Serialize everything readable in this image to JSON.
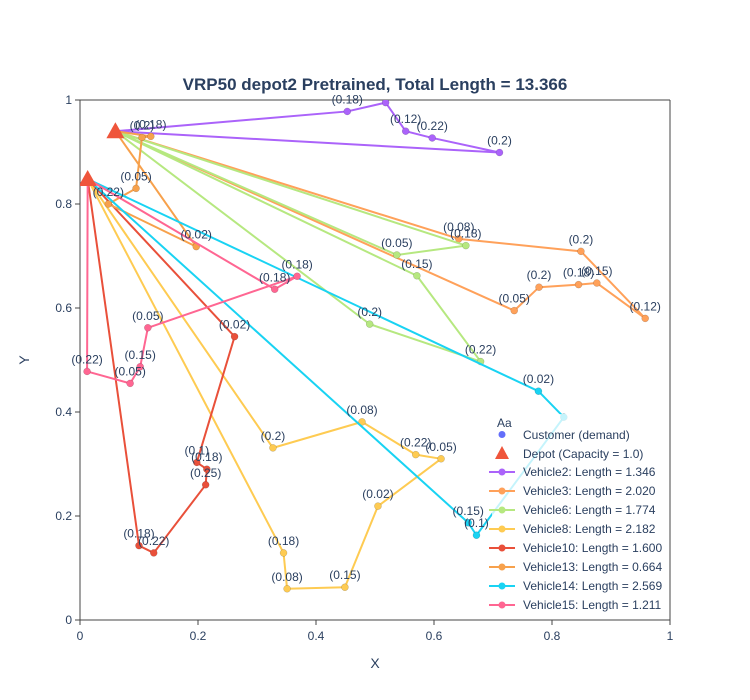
{
  "chart_data": {
    "type": "scatter",
    "title": "VRP50 depot2 Pretrained, Total Length = 13.366",
    "xlabel": "X",
    "ylabel": "Y",
    "xlim": [
      0,
      1
    ],
    "ylim": [
      0,
      1
    ],
    "xticks": [
      "0",
      "0.2",
      "0.4",
      "0.6",
      "0.8",
      "1"
    ],
    "yticks": [
      "0",
      "0.2",
      "0.4",
      "0.6",
      "0.8",
      "1"
    ],
    "grid": false,
    "legend_position": "bottom-right",
    "legend_title": "Aa",
    "legend_entries": {
      "customer": "Customer (demand)",
      "depot": "Depot (Capacity = 1.0)"
    },
    "depots": [
      {
        "x": 0.06,
        "y": 0.94,
        "color": "#ef553b"
      },
      {
        "x": 0.013,
        "y": 0.848,
        "color": "#ef553b"
      }
    ],
    "series": [
      {
        "name": "Vehicle2: Length = 1.346",
        "color": "#ab63fa",
        "points": [
          {
            "x": 0.06,
            "y": 0.94,
            "label": ""
          },
          {
            "x": 0.453,
            "y": 0.978,
            "label": "(0.18)"
          },
          {
            "x": 0.518,
            "y": 0.995,
            "label": ""
          },
          {
            "x": 0.552,
            "y": 0.94,
            "label": "(0.12)"
          },
          {
            "x": 0.597,
            "y": 0.927,
            "label": "(0.22)"
          },
          {
            "x": 0.711,
            "y": 0.899,
            "label": "(0.2)"
          },
          {
            "x": 0.06,
            "y": 0.94,
            "label": ""
          }
        ]
      },
      {
        "name": "Vehicle3: Length = 2.020",
        "color": "#ffa15a",
        "points": [
          {
            "x": 0.06,
            "y": 0.94,
            "label": ""
          },
          {
            "x": 0.642,
            "y": 0.733,
            "label": "(0.08)"
          },
          {
            "x": 0.849,
            "y": 0.709,
            "label": "(0.2)"
          },
          {
            "x": 0.958,
            "y": 0.58,
            "label": "(0.12)"
          },
          {
            "x": 0.876,
            "y": 0.648,
            "label": "(0.15)"
          },
          {
            "x": 0.845,
            "y": 0.645,
            "label": "(0.18)"
          },
          {
            "x": 0.778,
            "y": 0.64,
            "label": "(0.2)"
          },
          {
            "x": 0.736,
            "y": 0.595,
            "label": "(0.05)"
          },
          {
            "x": 0.06,
            "y": 0.94,
            "label": ""
          }
        ]
      },
      {
        "name": "Vehicle6: Length = 1.774",
        "color": "#b6e880",
        "points": [
          {
            "x": 0.06,
            "y": 0.94,
            "label": ""
          },
          {
            "x": 0.537,
            "y": 0.702,
            "label": "(0.05)"
          },
          {
            "x": 0.654,
            "y": 0.72,
            "label": "(0.18)"
          },
          {
            "x": 0.06,
            "y": 0.94,
            "label": ""
          },
          {
            "x": 0.571,
            "y": 0.662,
            "label": "(0.15)"
          },
          {
            "x": 0.679,
            "y": 0.497,
            "label": "(0.22)"
          },
          {
            "x": 0.491,
            "y": 0.569,
            "label": "(0.2)"
          },
          {
            "x": 0.06,
            "y": 0.94,
            "label": ""
          }
        ]
      },
      {
        "name": "Vehicle8: Length = 2.182",
        "color": "#fecb52",
        "points": [
          {
            "x": 0.013,
            "y": 0.848,
            "label": ""
          },
          {
            "x": 0.327,
            "y": 0.331,
            "label": "(0.2)"
          },
          {
            "x": 0.478,
            "y": 0.381,
            "label": "(0.08)"
          },
          {
            "x": 0.569,
            "y": 0.318,
            "label": "(0.22)"
          },
          {
            "x": 0.612,
            "y": 0.31,
            "label": "(0.05)"
          },
          {
            "x": 0.505,
            "y": 0.219,
            "label": "(0.02)"
          },
          {
            "x": 0.449,
            "y": 0.063,
            "label": "(0.15)"
          },
          {
            "x": 0.351,
            "y": 0.06,
            "label": "(0.08)"
          },
          {
            "x": 0.345,
            "y": 0.129,
            "label": "(0.18)"
          },
          {
            "x": 0.013,
            "y": 0.848,
            "label": ""
          }
        ]
      },
      {
        "name": "Vehicle10: Length = 1.600",
        "color": "#e9503a",
        "points": [
          {
            "x": 0.013,
            "y": 0.848,
            "label": ""
          },
          {
            "x": 0.262,
            "y": 0.545,
            "label": "(0.02)"
          },
          {
            "x": 0.198,
            "y": 0.303,
            "label": "(0.1)"
          },
          {
            "x": 0.215,
            "y": 0.29,
            "label": "(0.18)"
          },
          {
            "x": 0.213,
            "y": 0.26,
            "label": "(0.25)"
          },
          {
            "x": 0.125,
            "y": 0.129,
            "label": "(0.22)"
          },
          {
            "x": 0.1,
            "y": 0.143,
            "label": "(0.18)"
          },
          {
            "x": 0.013,
            "y": 0.848,
            "label": ""
          }
        ]
      },
      {
        "name": "Vehicle13: Length = 0.664",
        "color": "#f7a14c",
        "points": [
          {
            "x": 0.06,
            "y": 0.94,
            "label": ""
          },
          {
            "x": 0.12,
            "y": 0.93,
            "label": "(0.18)"
          },
          {
            "x": 0.105,
            "y": 0.928,
            "label": "(0.2)"
          },
          {
            "x": 0.095,
            "y": 0.83,
            "label": "(0.05)"
          },
          {
            "x": 0.048,
            "y": 0.8,
            "label": "(0.22)"
          },
          {
            "x": 0.197,
            "y": 0.718,
            "label": "(0.02)"
          },
          {
            "x": 0.06,
            "y": 0.94,
            "label": ""
          }
        ]
      },
      {
        "name": "Vehicle14: Length = 2.569",
        "color": "#19d3f3",
        "points": [
          {
            "x": 0.013,
            "y": 0.848,
            "label": ""
          },
          {
            "x": 0.777,
            "y": 0.44,
            "label": "(0.02)"
          },
          {
            "x": 0.82,
            "y": 0.39,
            "label": ""
          },
          {
            "x": 0.672,
            "y": 0.163,
            "label": "(0.1)"
          },
          {
            "x": 0.658,
            "y": 0.187,
            "label": "(0.15)"
          },
          {
            "x": 0.013,
            "y": 0.848,
            "label": ""
          }
        ]
      },
      {
        "name": "Vehicle15: Length = 1.211",
        "color": "#ff6692",
        "points": [
          {
            "x": 0.013,
            "y": 0.848,
            "label": ""
          },
          {
            "x": 0.33,
            "y": 0.636,
            "label": "(0.18)"
          },
          {
            "x": 0.368,
            "y": 0.661,
            "label": "(0.18)"
          },
          {
            "x": 0.115,
            "y": 0.562,
            "label": "(0.05)"
          },
          {
            "x": 0.102,
            "y": 0.487,
            "label": "(0.15)"
          },
          {
            "x": 0.085,
            "y": 0.455,
            "label": "(0.05)"
          },
          {
            "x": 0.012,
            "y": 0.478,
            "label": "(0.22)"
          },
          {
            "x": 0.013,
            "y": 0.848,
            "label": ""
          }
        ]
      }
    ]
  }
}
